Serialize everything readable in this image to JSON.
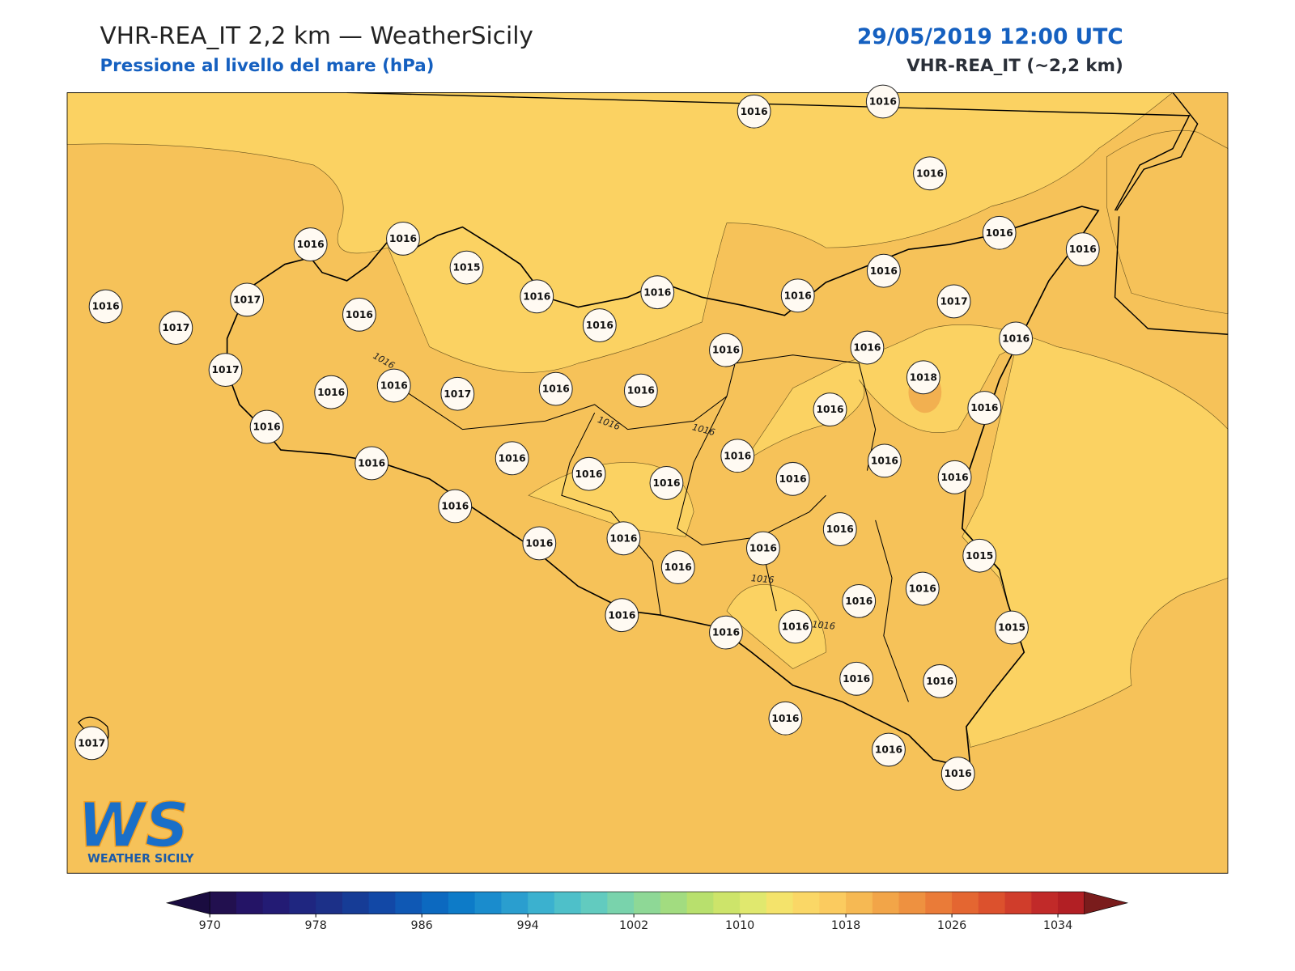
{
  "header": {
    "title": "VHR-REA_IT 2,2 km — WeatherSicily",
    "subtitle": "Pressione al livello del mare (hPa)",
    "date": "29/05/2019 12:00 UTC",
    "model": "VHR-REA_IT (~2,2 km)"
  },
  "map": {
    "type": "station-values",
    "values": [
      1016,
      1016,
      1016,
      1016,
      1016,
      1016,
      1016,
      1015,
      1016,
      1016,
      1016,
      1016,
      1017,
      1016,
      1017,
      1017,
      1016,
      1016,
      1016,
      1016,
      1016,
      1017,
      1016,
      1016,
      1017,
      1016,
      1016,
      1018,
      1016,
      1016,
      1016,
      1016,
      1016,
      1016,
      1016,
      1016,
      1016,
      1016,
      1016,
      1016,
      1016,
      1016,
      1016,
      1016,
      1016,
      1015,
      1016,
      1016,
      1016,
      1016,
      1016,
      1015,
      1016,
      1016,
      1016,
      1016,
      1016,
      1017
    ],
    "contour_labels": [
      1016,
      1016,
      1016,
      1016,
      1016
    ],
    "logo": {
      "mark": "WS",
      "text": "WEATHER SICILY"
    },
    "colorbar": {
      "lim": [
        970,
        1036
      ],
      "ticks": [
        970,
        978,
        986,
        994,
        1002,
        1010,
        1018,
        1026,
        1034
      ],
      "under_color": "#1a0c40",
      "over_color": "#7a1c1c",
      "colors": [
        "#22104f",
        "#241466",
        "#231b74",
        "#1f2680",
        "#1c3088",
        "#163c96",
        "#1248a6",
        "#0f58b4",
        "#0c69c0",
        "#0d7bc8",
        "#1a8ccd",
        "#2a9ecf",
        "#3bb1cf",
        "#4ec0c9",
        "#62cbbf",
        "#79d3ac",
        "#8ed896",
        "#a2dc80",
        "#b8e06d",
        "#cde46a",
        "#e0e86e",
        "#f4e36b",
        "#fad766",
        "#fbcb5f",
        "#f6b953",
        "#f2a548",
        "#ee9140",
        "#ea7b38",
        "#e46631",
        "#dc512d",
        "#d03d2b",
        "#c12a29",
        "#b21f24"
      ]
    }
  }
}
